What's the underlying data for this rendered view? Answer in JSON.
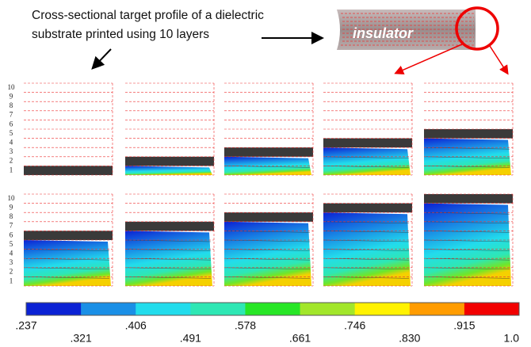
{
  "caption": [
    "Cross-sectional target profile of a dielectric",
    "substrate printed using 10 layers"
  ],
  "insulator_label": "insulator",
  "layer_labels": [
    "1",
    "2",
    "3",
    "4",
    "5",
    "6",
    "7",
    "8",
    "9",
    "10"
  ],
  "printed_layers": [
    1,
    2,
    3,
    4,
    5,
    6,
    7,
    8,
    9,
    10
  ],
  "colorbar": {
    "colors": [
      "#0b22d4",
      "#1a8fe6",
      "#22dcec",
      "#2ee7b4",
      "#27e626",
      "#a2e62a",
      "#fff200",
      "#ff9c00",
      "#f20000"
    ],
    "labels": [
      ".237",
      ".321",
      ".406",
      ".491",
      ".578",
      ".661",
      ".746",
      ".830",
      ".915",
      "1.0"
    ]
  }
}
